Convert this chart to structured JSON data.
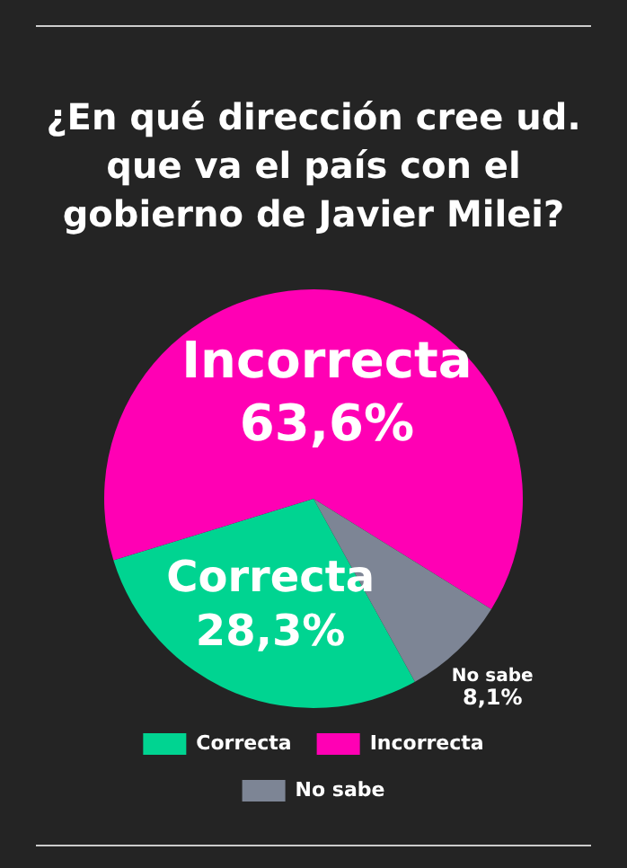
{
  "chart_data": {
    "type": "pie",
    "title": "¿En qué dirección cree ud. que va el país con el gobierno de Javier Milei?",
    "categories": [
      "Correcta",
      "Incorrecta",
      "No sabe"
    ],
    "values": [
      28.3,
      63.6,
      8.1
    ],
    "colors": [
      "#00d491",
      "#ff00b4",
      "#7d8595"
    ],
    "value_labels": [
      "28,3%",
      "63,6%",
      "8,1%"
    ],
    "legend": "bottom"
  }
}
